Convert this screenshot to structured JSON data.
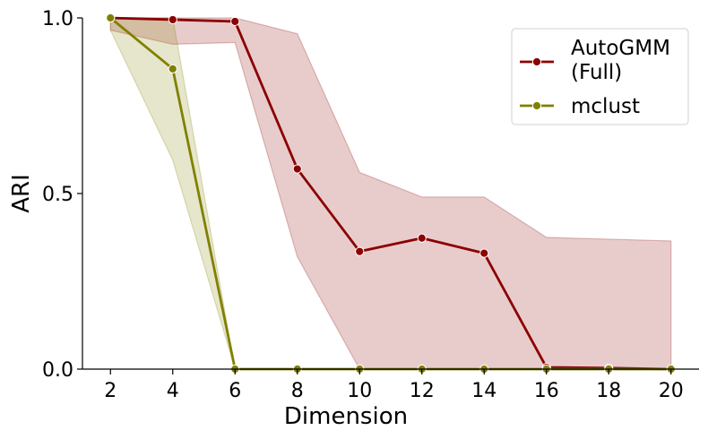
{
  "chart_data": {
    "type": "line",
    "xlabel": "Dimension",
    "ylabel": "ARI",
    "x": [
      2,
      4,
      6,
      8,
      10,
      12,
      14,
      16,
      18,
      20
    ],
    "xticks": [
      "2",
      "4",
      "6",
      "8",
      "10",
      "12",
      "14",
      "16",
      "18",
      "20"
    ],
    "yticks": [
      "0.0",
      "0.5",
      "1.0"
    ],
    "ytick_values": [
      0.0,
      0.5,
      1.0
    ],
    "xlim": [
      1.1,
      20.9
    ],
    "ylim": [
      0.0,
      1.0
    ],
    "grid": false,
    "legend_position": "top-right",
    "series": [
      {
        "name": "AutoGMM\n(Full)",
        "color": "#8b0000",
        "values": [
          1.0,
          0.995,
          0.99,
          0.57,
          0.335,
          0.373,
          0.33,
          0.005,
          0.003,
          0.0
        ],
        "ci_low": [
          0.965,
          0.925,
          0.93,
          0.32,
          0.0,
          0.0,
          0.0,
          0.0,
          0.0,
          0.0
        ],
        "ci_high": [
          1.0,
          1.0,
          1.0,
          0.955,
          0.56,
          0.49,
          0.49,
          0.375,
          0.37,
          0.365
        ]
      },
      {
        "name": "mclust",
        "color": "#808000",
        "values": [
          1.0,
          0.855,
          0.0,
          0.0,
          0.0,
          0.0,
          0.0,
          0.0,
          0.0,
          0.0
        ],
        "ci_low": [
          0.965,
          0.595,
          0.0,
          0.0,
          0.0,
          0.0,
          0.0,
          0.0,
          0.0,
          0.0
        ],
        "ci_high": [
          1.0,
          1.0,
          0.0,
          0.0,
          0.0,
          0.0,
          0.0,
          0.0,
          0.0,
          0.0
        ]
      }
    ]
  }
}
